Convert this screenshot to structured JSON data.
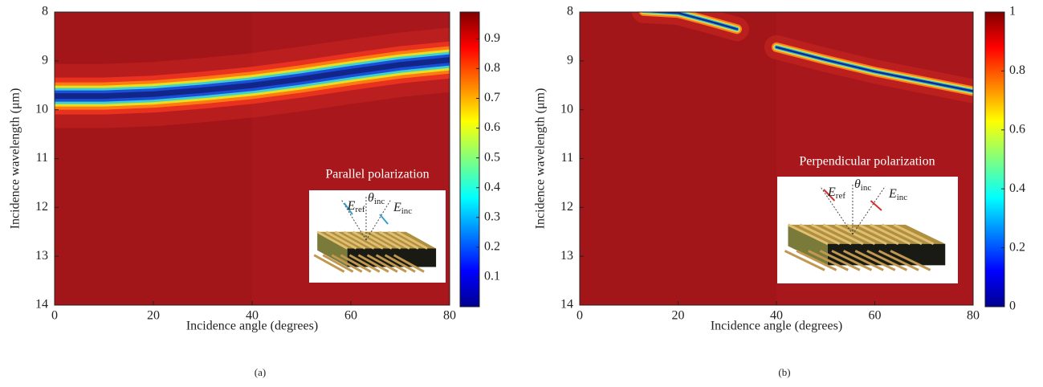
{
  "chart_data": [
    {
      "type": "heatmap",
      "caption": "(a)",
      "xlabel": "Incidence angle (degrees)",
      "ylabel": "Incidence wavelength (μm)",
      "xlim": [
        0,
        80
      ],
      "xticks": [
        0,
        20,
        40,
        60,
        80
      ],
      "ylim": [
        14,
        8
      ],
      "yticks": [
        8,
        9,
        10,
        11,
        12,
        13,
        14
      ],
      "x": [
        0,
        10,
        20,
        30,
        40,
        50,
        60,
        70,
        80
      ],
      "dip": [
        9.72,
        9.72,
        9.68,
        9.6,
        9.5,
        9.37,
        9.22,
        9.08,
        8.98
      ],
      "clim": [
        0,
        0.99
      ],
      "cticks": [
        0.1,
        0.2,
        0.3,
        0.4,
        0.5,
        0.6,
        0.7,
        0.8,
        0.9
      ],
      "inset_title": "Parallel polarization",
      "inset_labels": [
        {
          "main": "E",
          "sub": "ref"
        },
        {
          "main": "θ",
          "sub": "inc"
        },
        {
          "main": "E",
          "sub": "inc"
        }
      ]
    },
    {
      "type": "heatmap",
      "caption": "(b)",
      "xlabel": "Incidence angle (degrees)",
      "ylabel": "Incidence wavelength (μm)",
      "xlim": [
        0,
        80
      ],
      "xticks": [
        0,
        20,
        40,
        60,
        80
      ],
      "ylim": [
        14,
        8
      ],
      "yticks": [
        8,
        9,
        10,
        11,
        12,
        13,
        14
      ],
      "x": [
        13,
        20,
        26,
        32,
        36,
        40,
        50,
        60,
        70,
        80
      ],
      "dip": [
        7.98,
        8.02,
        8.18,
        8.35,
        null,
        8.72,
        8.98,
        9.22,
        9.42,
        9.62
      ],
      "clim": [
        0,
        1
      ],
      "cticks": [
        0,
        0.2,
        0.4,
        0.6,
        0.8,
        1
      ],
      "inset_title": "Perpendicular polarization",
      "inset_labels": [
        {
          "main": "E",
          "sub": "ref"
        },
        {
          "main": "θ",
          "sub": "inc"
        },
        {
          "main": "E",
          "sub": "inc"
        }
      ]
    }
  ]
}
